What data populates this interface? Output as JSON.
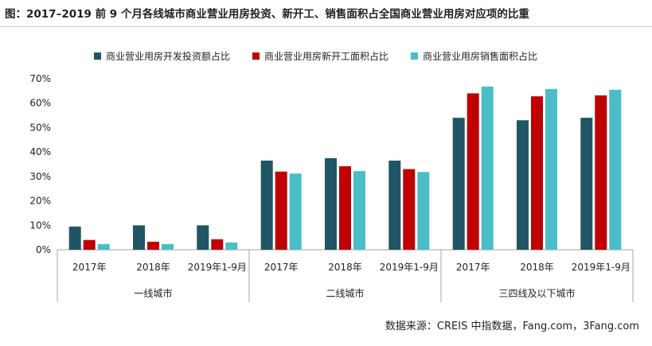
{
  "title": "图：2017–2019 前 9 个月各线城市商业营业用房投资、新开工、销售面积占全国商业营业用房对应项的比重",
  "source": "数据来源：CREIS 中指数据，Fang.com，3Fang.com",
  "colors": {
    "investment": "#1f5565",
    "new_start": "#c00000",
    "sales": "#4bbdc6",
    "axis": "#a6a6a6"
  },
  "chart_data": {
    "type": "bar",
    "title": "图：2017–2019 前 9 个月各线城市商业营业用房投资、新开工、销售面积占全国商业营业用房对应项的比重",
    "groups": [
      "一线城市",
      "二线城市",
      "三四线及以下城市"
    ],
    "categories": [
      "2017年",
      "2018年",
      "2019年1-9月",
      "2017年",
      "2018年",
      "2019年1-9月",
      "2017年",
      "2018年",
      "2019年1-9月"
    ],
    "series": [
      {
        "name": "商业营业用房开发投资额占比",
        "color": "#1f5565",
        "values": [
          9.5,
          10.0,
          10.0,
          36.5,
          37.5,
          36.5,
          54.0,
          53.0,
          54.0
        ]
      },
      {
        "name": "商业营业用房新开工面积占比",
        "color": "#c00000",
        "values": [
          4.0,
          3.3,
          4.3,
          32.0,
          34.2,
          33.0,
          64.0,
          62.8,
          63.2
        ]
      },
      {
        "name": "商业营业用房销售面积占比",
        "color": "#4bbdc6",
        "values": [
          2.3,
          2.3,
          3.0,
          31.2,
          32.2,
          31.8,
          66.8,
          65.8,
          65.5
        ]
      }
    ],
    "ylim": [
      0,
      70
    ],
    "yticks": [
      "0%",
      "10%",
      "20%",
      "30%",
      "40%",
      "50%",
      "60%",
      "70%"
    ],
    "legend": "top",
    "grid": false
  }
}
